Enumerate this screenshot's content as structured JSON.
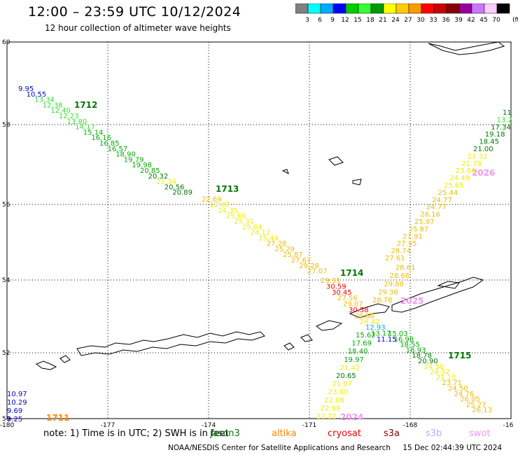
{
  "header": {
    "title": "12:00 – 23:59 UTC 10/12/2024",
    "subtitle": "12 hour collection of altimeter wave heights"
  },
  "colorbar": {
    "unit": "(ft)",
    "bins": [
      {
        "label": "3",
        "color": "#808080"
      },
      {
        "label": "6",
        "color": "#00ffff"
      },
      {
        "label": "9",
        "color": "#00aaff"
      },
      {
        "label": "12",
        "color": "#0000ff"
      },
      {
        "label": "15",
        "color": "#00cc00"
      },
      {
        "label": "18",
        "color": "#33ff33"
      },
      {
        "label": "21",
        "color": "#009900"
      },
      {
        "label": "24",
        "color": "#ffff00"
      },
      {
        "label": "27",
        "color": "#ffcc00"
      },
      {
        "label": "30",
        "color": "#ff9900"
      },
      {
        "label": "33",
        "color": "#ff0000"
      },
      {
        "label": "36",
        "color": "#cc0000"
      },
      {
        "label": "39",
        "color": "#880000"
      },
      {
        "label": "42",
        "color": "#990099"
      },
      {
        "label": "45",
        "color": "#cc77ff"
      },
      {
        "label": "70",
        "color": "#ffccff"
      },
      {
        "label": "",
        "color": "#000000"
      }
    ]
  },
  "axes": {
    "lon_labels": [
      "-180",
      "-177",
      "-174",
      "-171",
      "-168",
      "-16"
    ],
    "lat_labels": [
      "60",
      "58",
      "56",
      "54",
      "52",
      "50"
    ]
  },
  "colors": {
    "c12": "#0000cc",
    "c15": "#00aa00",
    "c18": "#33dd33",
    "c21": "#007700",
    "c24": "#eeee00",
    "c27": "#eebb00",
    "c30": "#ee8800",
    "c33": "#ee0000",
    "cyan": "#00aaee",
    "c36": "#aa0000",
    "swot": "#ee99ee"
  },
  "tracks": [
    {
      "name": "1711",
      "color": "#ff8800",
      "labels": [
        {
          "t": "10.97",
          "c": "c12"
        },
        {
          "t": "10.29",
          "c": "c12"
        },
        {
          "t": "9.69",
          "c": "c12"
        },
        {
          "t": "9.25",
          "c": "c12"
        }
      ]
    },
    {
      "name": "1712",
      "color": "#007700",
      "labels": [
        {
          "t": "9.95",
          "c": "c12"
        },
        {
          "t": "10.55",
          "c": "c12"
        },
        {
          "t": "13.34",
          "c": "c18"
        },
        {
          "t": "12.38",
          "c": "c18"
        },
        {
          "t": "12.40",
          "c": "c18"
        },
        {
          "t": "12.23",
          "c": "c18"
        },
        {
          "t": "13.80",
          "c": "c18"
        },
        {
          "t": "14.17",
          "c": "c18"
        },
        {
          "t": "15.14",
          "c": "c15"
        },
        {
          "t": "16.16",
          "c": "c15"
        },
        {
          "t": "16.85",
          "c": "c15"
        },
        {
          "t": "16.57",
          "c": "c15"
        },
        {
          "t": "18.90",
          "c": "c15"
        },
        {
          "t": "19.79",
          "c": "c15"
        },
        {
          "t": "19.98",
          "c": "c15"
        },
        {
          "t": "20.85",
          "c": "c15"
        },
        {
          "t": "20.32",
          "c": "c21"
        },
        {
          "t": "21.34",
          "c": "c24"
        },
        {
          "t": "20.56",
          "c": "c21"
        },
        {
          "t": "20.89",
          "c": "c21"
        }
      ]
    },
    {
      "name": "1713",
      "color": "#007700",
      "labels": [
        {
          "t": "22.69",
          "c": "c27"
        },
        {
          "t": "22.87",
          "c": "c24"
        },
        {
          "t": "24.35",
          "c": "c24"
        },
        {
          "t": "25.60",
          "c": "c24"
        },
        {
          "t": "25.31",
          "c": "c24"
        },
        {
          "t": "25.04",
          "c": "c24"
        },
        {
          "t": "24.12",
          "c": "c24"
        },
        {
          "t": "25.44",
          "c": "c24"
        },
        {
          "t": "27.28",
          "c": "c27"
        },
        {
          "t": "25.29",
          "c": "c27"
        },
        {
          "t": "25.87",
          "c": "c27"
        },
        {
          "t": "27.67",
          "c": "c27"
        },
        {
          "t": "29.28",
          "c": "c27"
        },
        {
          "t": "27.07",
          "c": "c27"
        }
      ]
    },
    {
      "name": "1714",
      "color": "#007700",
      "labels": [
        {
          "t": "29.31",
          "c": "c27"
        },
        {
          "t": "30.59",
          "c": "c33"
        },
        {
          "t": "30.45",
          "c": "c33"
        },
        {
          "t": "27.56",
          "c": "c27"
        },
        {
          "t": "29.07",
          "c": "c27"
        },
        {
          "t": "30.58",
          "c": "c33"
        },
        {
          "t": "28.68",
          "c": "c27"
        },
        {
          "t": "26.42",
          "c": "c24"
        },
        {
          "t": "12.93",
          "c": "cyan"
        },
        {
          "t": "13.17",
          "c": "c15"
        },
        {
          "t": "11.15",
          "c": "c12"
        }
      ]
    },
    {
      "name": "1715",
      "color": "#007700",
      "labels": [
        {
          "t": "15.03",
          "c": "c15"
        },
        {
          "t": "16.98",
          "c": "c15"
        },
        {
          "t": "18.55",
          "c": "c15"
        },
        {
          "t": "18.93",
          "c": "c15"
        },
        {
          "t": "18.78",
          "c": "c21"
        },
        {
          "t": "20.90",
          "c": "c21"
        },
        {
          "t": "24.50",
          "c": "c24"
        },
        {
          "t": "24.52",
          "c": "c24"
        },
        {
          "t": "21.15",
          "c": "c24"
        },
        {
          "t": "23.71",
          "c": "c27"
        },
        {
          "t": "24.50",
          "c": "c27"
        },
        {
          "t": "24.76",
          "c": "c27"
        },
        {
          "t": "26.05",
          "c": "c27"
        },
        {
          "t": "25.27",
          "c": "c27"
        },
        {
          "t": "26.13",
          "c": "c27"
        }
      ]
    },
    {
      "name": "2024",
      "color": "#ee99ee",
      "labels": [
        {
          "t": "15.62",
          "c": "c15"
        },
        {
          "t": "17.69",
          "c": "c15"
        },
        {
          "t": "18.40",
          "c": "c15"
        },
        {
          "t": "19.97",
          "c": "c15"
        },
        {
          "t": "21.42",
          "c": "c24"
        },
        {
          "t": "20.65",
          "c": "c21"
        },
        {
          "t": "21.07",
          "c": "c24"
        },
        {
          "t": "23.00",
          "c": "c24"
        },
        {
          "t": "22.08",
          "c": "c24"
        },
        {
          "t": "22.99",
          "c": "c24"
        },
        {
          "t": "22.22",
          "c": "c24"
        }
      ]
    },
    {
      "name": "2025",
      "color": "#ee99ee",
      "labels": [
        {
          "t": "28.78",
          "c": "c27"
        },
        {
          "t": "29.36",
          "c": "c27"
        },
        {
          "t": "29.88",
          "c": "c27"
        },
        {
          "t": "28.66",
          "c": "c27"
        },
        {
          "t": "28.61",
          "c": "c27"
        }
      ]
    },
    {
      "name": "2026",
      "color": "#ee99ee",
      "labels": [
        {
          "t": "27.61",
          "c": "c27"
        },
        {
          "t": "28.74",
          "c": "c27"
        },
        {
          "t": "27.95",
          "c": "c27"
        },
        {
          "t": "27.91",
          "c": "c27"
        },
        {
          "t": "25.87",
          "c": "c27"
        },
        {
          "t": "25.97",
          "c": "c27"
        },
        {
          "t": "26.16",
          "c": "c27"
        },
        {
          "t": "24.77",
          "c": "c27"
        },
        {
          "t": "24.77",
          "c": "c27"
        },
        {
          "t": "25.44",
          "c": "c27"
        },
        {
          "t": "25.65",
          "c": "c24"
        },
        {
          "t": "24.49",
          "c": "c24"
        },
        {
          "t": "23.60",
          "c": "c24"
        },
        {
          "t": "21.78",
          "c": "c24"
        },
        {
          "t": "21.32",
          "c": "c24"
        },
        {
          "t": "21.00",
          "c": "c21"
        },
        {
          "t": "18.45",
          "c": "c21"
        },
        {
          "t": "19.18",
          "c": "c21"
        },
        {
          "t": "17.34",
          "c": "c21"
        },
        {
          "t": "13.2",
          "c": "c18"
        },
        {
          "t": "11",
          "c": "c21"
        }
      ]
    }
  ],
  "note": {
    "prefix": "note: 1) Time is in UTC; 2) SWH is in feet",
    "legend": [
      {
        "t": "jason3",
        "color": "#007700"
      },
      {
        "t": "altika",
        "color": "#ff8800"
      },
      {
        "t": "cryosat",
        "color": "#ee0000"
      },
      {
        "t": "s3a",
        "color": "#880000"
      },
      {
        "t": "s3b",
        "color": "#bbaaff"
      },
      {
        "t": "swot",
        "color": "#ee99ee"
      }
    ]
  },
  "footer": {
    "agency": "NOAA/NESDIS Center for Satellite Applications and Research",
    "timestamp": "15 Dec 02:44:39 UTC 2024"
  }
}
